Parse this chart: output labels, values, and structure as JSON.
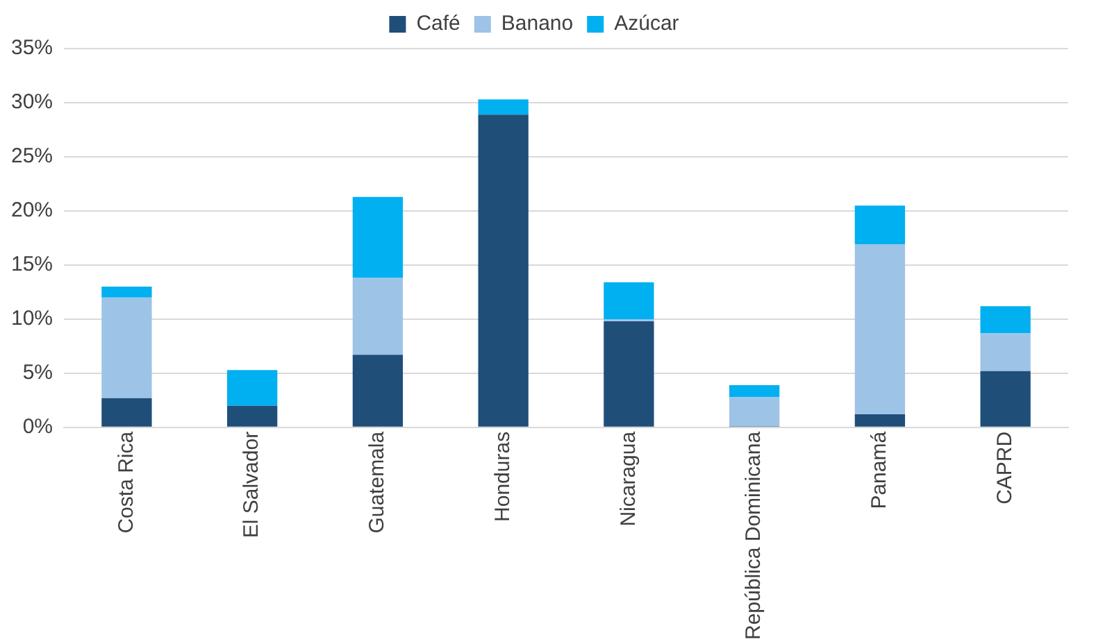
{
  "chart_data": {
    "type": "bar",
    "stacked": true,
    "categories": [
      "Costa Rica",
      "El Salvador",
      "Guatemala",
      "Honduras",
      "Nicaragua",
      "República Dominicana",
      "Panamá",
      "CAPRD"
    ],
    "series": [
      {
        "name": "Café",
        "color": "#1f4e79",
        "values": [
          2.7,
          2.0,
          6.7,
          28.9,
          9.8,
          0.1,
          1.2,
          5.2
        ]
      },
      {
        "name": "Banano",
        "color": "#9dc3e6",
        "values": [
          9.3,
          0,
          7.1,
          0,
          0.2,
          2.7,
          15.7,
          3.5
        ]
      },
      {
        "name": "Azúcar",
        "color": "#00b0f0",
        "values": [
          1.0,
          3.3,
          7.5,
          1.4,
          3.4,
          1.1,
          3.6,
          2.5
        ]
      }
    ],
    "ylim": [
      0,
      35
    ],
    "yticks": [
      {
        "value": 0,
        "label": "0%"
      },
      {
        "value": 5,
        "label": "5%"
      },
      {
        "value": 10,
        "label": "10%"
      },
      {
        "value": 15,
        "label": "15%"
      },
      {
        "value": 20,
        "label": "20%"
      },
      {
        "value": 25,
        "label": "25%"
      },
      {
        "value": 30,
        "label": "30%"
      },
      {
        "value": 35,
        "label": "35%"
      }
    ],
    "grid": "y",
    "legend": "top"
  }
}
